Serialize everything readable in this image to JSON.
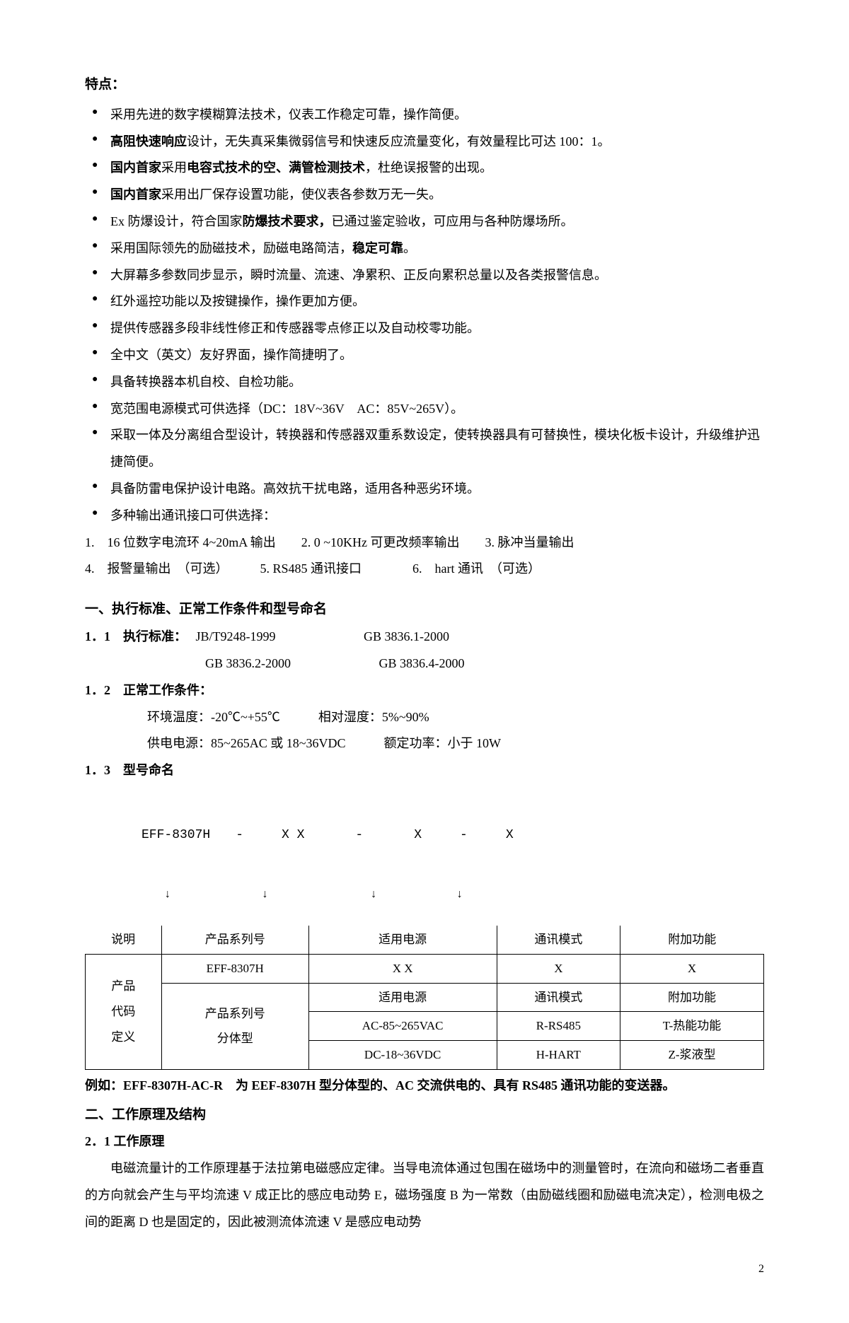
{
  "features_title": "特点：",
  "features": [
    {
      "text": "采用先进的数字模糊算法技术，仪表工作稳定可靠，操作简便。"
    },
    {
      "html": "<span class='bold'>高阻快速响应</span>设计，无失真采集微弱信号和快速反应流量变化，有效量程比可达 100：1。"
    },
    {
      "html": "<span class='bold'>国内首家</span>采用<span class='bold'>电容式技术的空、满管检测技术</span>，杜绝误报警的出现。"
    },
    {
      "html": "<span class='bold'>国内首家</span>采用出厂保存设置功能，使仪表各参数万无一失。"
    },
    {
      "html": "Ex 防爆设计，符合国家<span class='bold'>防爆技术要求，</span>已通过鉴定验收，可应用与各种防爆场所。"
    },
    {
      "html": "采用国际领先的励磁技术，励磁电路简洁，<span class='bold'>稳定可靠</span>。"
    },
    {
      "text": "大屏幕多参数同步显示，瞬时流量、流速、净累积、正反向累积总量以及各类报警信息。"
    },
    {
      "text": "红外遥控功能以及按键操作，操作更加方便。"
    },
    {
      "text": "提供传感器多段非线性修正和传感器零点修正以及自动校零功能。"
    },
    {
      "text": "全中文（英文）友好界面，操作简捷明了。"
    },
    {
      "text": "具备转换器本机自校、自检功能。"
    },
    {
      "text": "宽范围电源模式可供选择（DC：18V~36V　AC：85V~265V）。"
    },
    {
      "text": "采取一体及分离组合型设计，转换器和传感器双重系数设定，使转换器具有可替换性，模块化板卡设计，升级维护迅捷简便。"
    },
    {
      "text": "具备防雷电保护设计电路。高效抗干扰电路，适用各种恶劣环境。"
    },
    {
      "text": "多种输出通讯接口可供选择："
    }
  ],
  "output_options": [
    "1.　16 位数字电流环 4~20mA 输出　　2. 0 ~10KHz 可更改频率输出　　3. 脉冲当量输出",
    "4.　报警量输出　（可选）　　　5. RS485 通讯接口　　　　6.　hart 通讯　（可选）"
  ],
  "section1_title": "一、执行标准、正常工作条件和型号命名",
  "standards": {
    "label": "1．1　执行标准：",
    "line1a": "JB/T9248-1999",
    "line1b": "GB 3836.1-2000",
    "line2a": "GB 3836.2-2000",
    "line2b": "GB 3836.4-2000"
  },
  "conditions": {
    "label": "1．2　正常工作条件：",
    "line1": "环境温度：-20℃~+55℃　　　相对湿度：5%~90%",
    "line2": "供电电源：85~265AC 或 18~36VDC　　　额定功率：小于 10W"
  },
  "model_title": "1．3　型号命名",
  "model_diagram": {
    "line1": "EFF-8307H　　-　　　X X　　　　-　　　　X　　　-　　　X",
    "line2": "　　↓　　　　　　　　↓　　　　　　　　　↓　　　　　　　↓"
  },
  "table": {
    "header": [
      "说明",
      "产品系列号",
      "适用电源",
      "通讯模式",
      "附加功能"
    ],
    "row_group_label": "产品\n代码\n定义",
    "r1": [
      "EFF-8307H",
      "X X",
      "X",
      "X"
    ],
    "r2_left": "产品系列号\n分体型",
    "r2": [
      "适用电源",
      "通讯模式",
      "附加功能"
    ],
    "r3": [
      "AC-85~265VAC",
      "R-RS485",
      "T-热能功能"
    ],
    "r4": [
      "DC-18~36VDC",
      "H-HART",
      "Z-浆液型"
    ]
  },
  "example": "例如：EFF-8307H-AC-R　为 EEF-8307H 型分体型的、AC 交流供电的、具有 RS485 通讯功能的变送器。",
  "section2_title": "二、工作原理及结构",
  "section2_sub": "2．1 工作原理",
  "section2_para": "电磁流量计的工作原理基于法拉第电磁感应定律。当导电流体通过包围在磁场中的测量管时，在流向和磁场二者垂直的方向就会产生与平均流速 V 成正比的感应电动势 E，磁场强度 B 为一常数（由励磁线圈和励磁电流决定），检测电极之间的距离 D 也是固定的，因此被测流体流速 V 是感应电动势",
  "page_number": "2"
}
